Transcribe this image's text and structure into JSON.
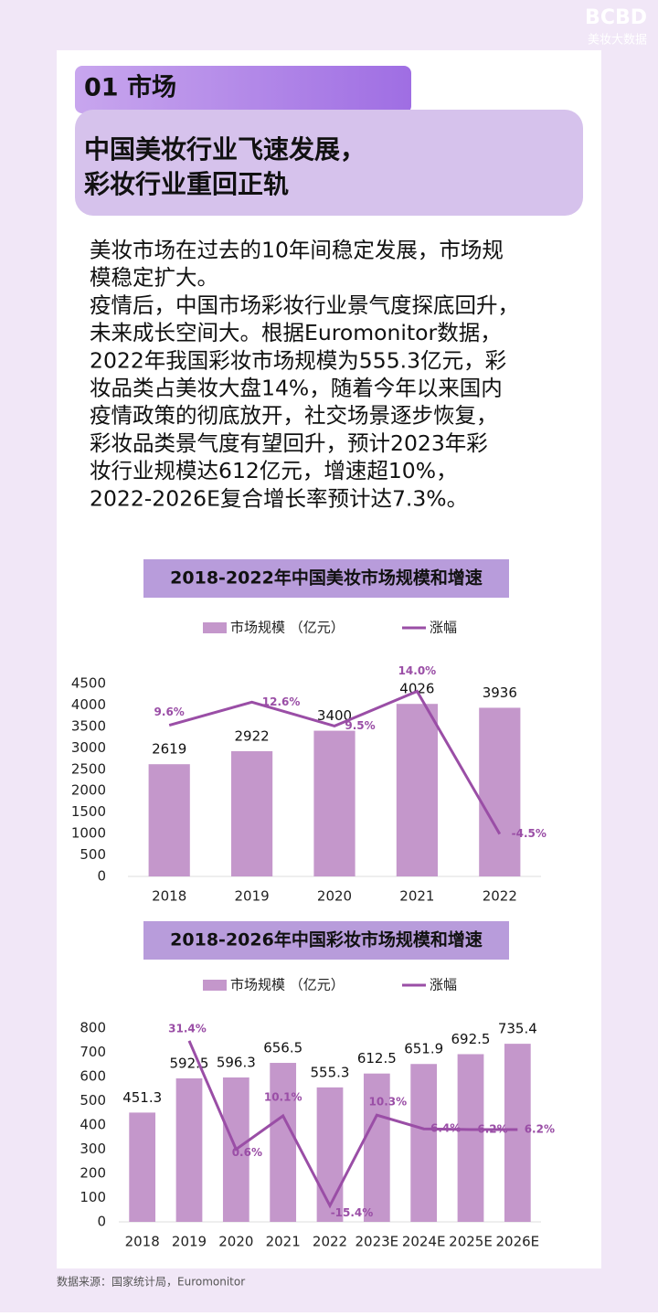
{
  "watermark": {
    "logo": "BCBD",
    "name": "美妆大数据"
  },
  "header": {
    "tag": "01 市场",
    "title": [
      "中国美妆行业飞速发展，",
      "彩妆行业重回正轨"
    ]
  },
  "body": [
    "美妆市场在过去的10年间稳定发展，市场规",
    "模稳定扩大。",
    "疫情后，中国市场彩妆行业景气度探底回升，",
    "未来成长空间大。根据Euromonitor数据，",
    "2022年我国彩妆市场规模为555.3亿元，彩",
    "妆品类占美妆大盘14%，随着今年以来国内",
    "疫情政策的彻底放开，社交场景逐步恢复，",
    "彩妆品类景气度有望回升，预计2023年彩",
    "妆行业规模达612亿元，增速超10%，",
    "2022-2026E复合增长率预计达7.3%。"
  ],
  "chart_data": [
    {
      "type": "bar",
      "title": "2018-2022年中国美妆市场规模和增速",
      "categories": [
        "2018",
        "2019",
        "2020",
        "2021",
        "2022"
      ],
      "series": [
        {
          "name": "市场规模 （亿元）",
          "color": "#c497cb",
          "values": [
            2619,
            2922,
            3400,
            4026,
            3936
          ]
        },
        {
          "name": "涨幅",
          "type": "line",
          "axis": "y2",
          "color": "#9a4ea6",
          "values": [
            9.6,
            12.6,
            9.5,
            14.0,
            -4.5
          ],
          "value_labels": [
            "9.6%",
            "12.6%",
            "9.5%",
            "14.0%",
            "-4.5%"
          ]
        }
      ],
      "ylim": [
        0,
        4500
      ],
      "yticks": [
        0,
        500,
        1000,
        1500,
        2000,
        2500,
        3000,
        3500,
        4000,
        4500
      ],
      "y2lim": [
        -10,
        15
      ]
    },
    {
      "type": "bar",
      "title": "2018-2026年中国彩妆市场规模和增速",
      "categories": [
        "2018",
        "2019",
        "2020",
        "2021",
        "2022",
        "2023E",
        "2024E",
        "2025E",
        "2026E"
      ],
      "series": [
        {
          "name": "市场规模 （亿元）",
          "color": "#c497cb",
          "values": [
            451.3,
            592.5,
            596.3,
            656.5,
            555.3,
            612.5,
            651.9,
            692.5,
            735.4
          ]
        },
        {
          "name": "涨幅",
          "type": "line",
          "axis": "y2",
          "color": "#9a4ea6",
          "values": [
            null,
            31.4,
            0.6,
            10.1,
            -15.4,
            10.3,
            6.4,
            6.2,
            6.2
          ],
          "value_labels": [
            null,
            "31.4%",
            "0.6%",
            "10.1%",
            "-15.4%",
            "10.3%",
            "6.4%",
            "6.2%",
            "6.2%"
          ]
        }
      ],
      "ylim": [
        0,
        800
      ],
      "yticks": [
        0,
        100,
        200,
        300,
        400,
        500,
        600,
        700,
        800
      ],
      "y2lim": [
        -20,
        35
      ]
    }
  ],
  "source": "数据来源：国家统计局，Euromonitor"
}
